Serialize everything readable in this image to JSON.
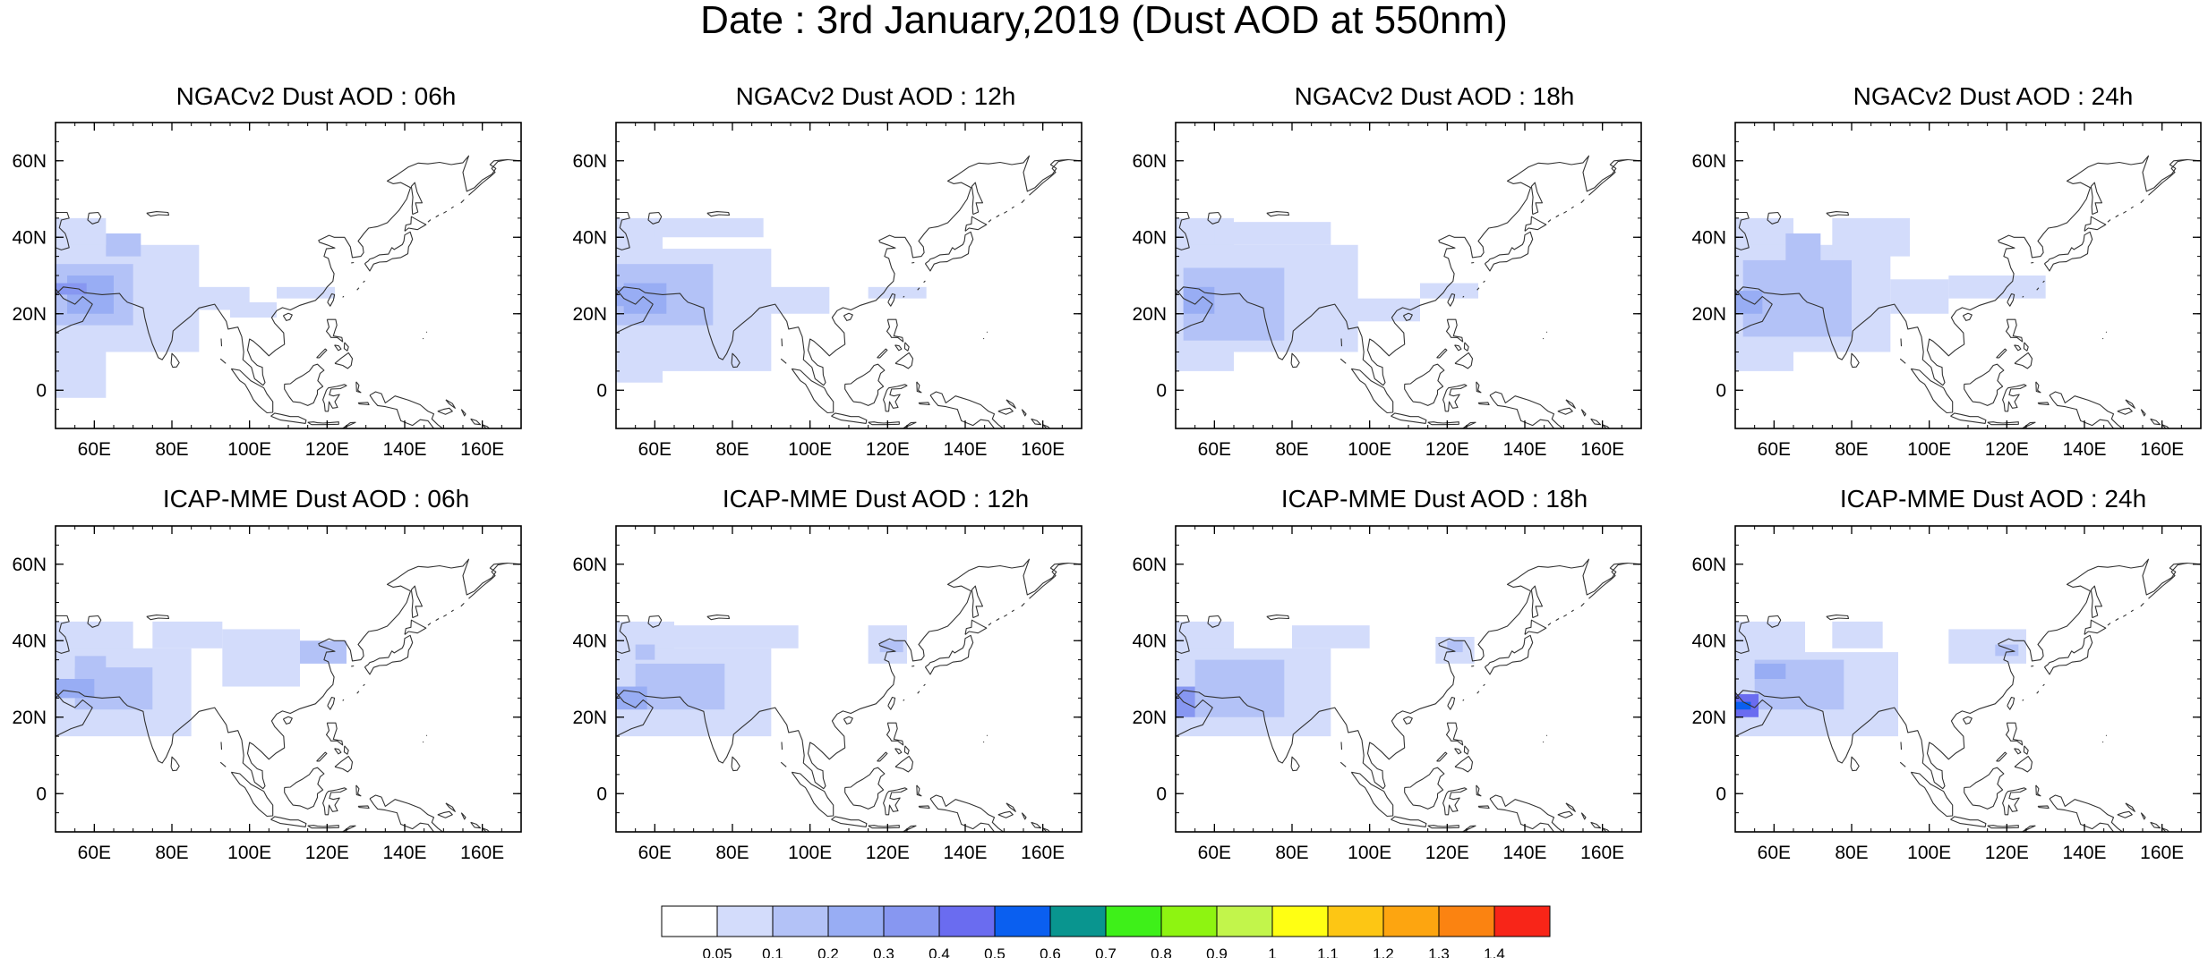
{
  "title": "Date : 3rd January,2019 (Dust AOD at 550nm)",
  "panels": [
    {
      "title": "NGACv2 Dust AOD : 06h"
    },
    {
      "title": "NGACv2 Dust AOD : 12h"
    },
    {
      "title": "NGACv2 Dust AOD : 18h"
    },
    {
      "title": "NGACv2 Dust AOD : 24h"
    },
    {
      "title": "ICAP-MME Dust AOD : 06h"
    },
    {
      "title": "ICAP-MME Dust AOD : 12h"
    },
    {
      "title": "ICAP-MME Dust AOD : 18h"
    },
    {
      "title": "ICAP-MME Dust AOD : 24h"
    }
  ],
  "axes": {
    "lon_ticks": [
      "60E",
      "80E",
      "100E",
      "120E",
      "140E",
      "160E"
    ],
    "lat_ticks": [
      "60N",
      "40N",
      "20N",
      "0"
    ],
    "lon_values": [
      60,
      80,
      100,
      120,
      140,
      160
    ],
    "lat_values": [
      60,
      40,
      20,
      0
    ],
    "lon_range": [
      50,
      170
    ],
    "lat_range": [
      -10,
      70
    ]
  },
  "colorbar": {
    "labels": [
      "0.05",
      "0.1",
      "0.2",
      "0.3",
      "0.4",
      "0.5",
      "0.6",
      "0.7",
      "0.8",
      "0.9",
      "1",
      "1.1",
      "1.2",
      "1.3",
      "1.4"
    ],
    "colors": [
      "#ffffff",
      "#d3dcfb",
      "#b3c2f7",
      "#98adf4",
      "#8797f1",
      "#6a6cf0",
      "#0a5ff0",
      "#09958f",
      "#3ef019",
      "#8ef411",
      "#c2f54b",
      "#ffff13",
      "#fdc614",
      "#fda510",
      "#fb8311",
      "#f82518"
    ]
  }
}
